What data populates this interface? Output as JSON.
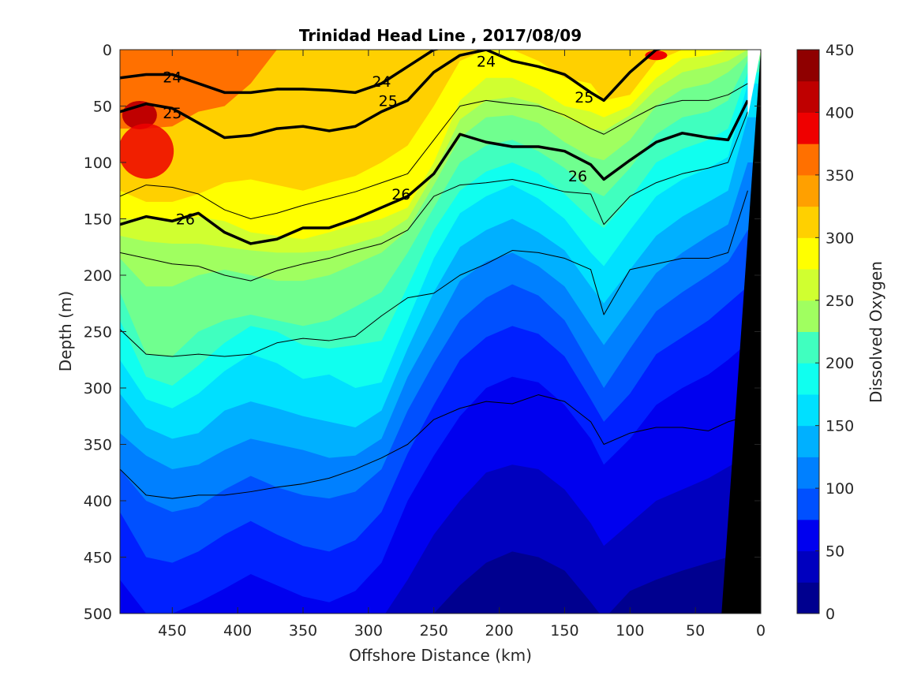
{
  "chart_data": {
    "type": "heatmap",
    "title": "Trinidad Head Line , 2017/08/09",
    "xlabel": "Offshore Distance (km)",
    "ylabel": "Depth (m)",
    "colorbar_label": "Dissolved Oxygen",
    "xlim": [
      490,
      0
    ],
    "ylim": [
      0,
      500
    ],
    "x_reversed": true,
    "y_reversed": true,
    "x_ticks": [
      450,
      400,
      350,
      300,
      250,
      200,
      150,
      100,
      50,
      0
    ],
    "y_ticks": [
      0,
      50,
      100,
      150,
      200,
      250,
      300,
      350,
      400,
      450,
      500
    ],
    "colorbar_ticks": [
      0,
      50,
      100,
      150,
      200,
      250,
      300,
      350,
      400,
      450
    ],
    "colorbar_range": [
      0,
      450
    ],
    "levels": [
      0,
      25,
      50,
      75,
      100,
      125,
      150,
      175,
      200,
      225,
      250,
      275,
      300,
      325,
      350,
      375,
      400,
      425,
      450
    ],
    "level_colors": [
      "#00008f",
      "#0000bf",
      "#0000ef",
      "#0020ff",
      "#0050ff",
      "#0080ff",
      "#00b0ff",
      "#00e0ff",
      "#10ffef",
      "#40ffbf",
      "#70ff8f",
      "#a0ff60",
      "#d0ff30",
      "#ffff00",
      "#ffd000",
      "#ffa000",
      "#ff7000",
      "#ff4000",
      "#ef0000",
      "#bf0000",
      "#8f0000"
    ],
    "oxygen_bands": [
      {
        "level": 375,
        "depths": [
          70,
          70,
          68,
          55,
          50,
          30,
          0,
          -5,
          -5,
          -5,
          -5,
          -5,
          -5,
          -5,
          -5,
          -5,
          -5,
          -5,
          -5,
          -5,
          -5,
          -5,
          -5,
          -5,
          -5,
          -5
        ]
      },
      {
        "level": 350,
        "depths": [
          125,
          135,
          135,
          128,
          118,
          115,
          120,
          125,
          118,
          112,
          100,
          85,
          50,
          10,
          0,
          0,
          10,
          25,
          30,
          45,
          40,
          10,
          0,
          0,
          -5,
          -5
        ]
      },
      {
        "level": 325,
        "depths": [
          150,
          150,
          152,
          148,
          152,
          162,
          165,
          168,
          162,
          155,
          150,
          140,
          100,
          45,
          25,
          25,
          35,
          50,
          55,
          60,
          50,
          25,
          8,
          5,
          0,
          -5
        ]
      },
      {
        "level": 300,
        "depths": [
          165,
          170,
          172,
          172,
          175,
          178,
          180,
          180,
          178,
          172,
          165,
          150,
          110,
          62,
          45,
          42,
          48,
          60,
          70,
          72,
          58,
          35,
          20,
          15,
          10,
          0
        ]
      },
      {
        "level": 275,
        "depths": [
          185,
          210,
          210,
          200,
          195,
          200,
          205,
          205,
          200,
          190,
          180,
          160,
          120,
          78,
          60,
          58,
          65,
          82,
          95,
          98,
          80,
          50,
          35,
          30,
          20,
          5
        ]
      },
      {
        "level": 250,
        "depths": [
          215,
          270,
          272,
          250,
          240,
          235,
          240,
          245,
          240,
          228,
          215,
          180,
          140,
          100,
          85,
          80,
          90,
          105,
          125,
          130,
          105,
          75,
          60,
          55,
          45,
          10
        ]
      },
      {
        "level": 225,
        "depths": [
          240,
          290,
          298,
          280,
          260,
          245,
          250,
          262,
          265,
          262,
          258,
          210,
          160,
          125,
          108,
          100,
          110,
          128,
          150,
          158,
          132,
          100,
          88,
          80,
          70,
          20
        ]
      },
      {
        "level": 200,
        "depths": [
          275,
          310,
          318,
          305,
          285,
          270,
          278,
          292,
          288,
          300,
          295,
          240,
          185,
          145,
          130,
          120,
          132,
          150,
          180,
          192,
          160,
          130,
          115,
          105,
          95,
          30
        ]
      },
      {
        "level": 175,
        "depths": [
          305,
          335,
          345,
          340,
          320,
          312,
          318,
          325,
          330,
          335,
          320,
          265,
          215,
          175,
          160,
          150,
          162,
          178,
          210,
          225,
          195,
          165,
          148,
          135,
          125,
          60
        ]
      },
      {
        "level": 150,
        "depths": [
          340,
          360,
          372,
          368,
          355,
          345,
          350,
          355,
          362,
          360,
          345,
          290,
          248,
          205,
          188,
          180,
          192,
          210,
          245,
          262,
          230,
          198,
          180,
          165,
          155,
          100
        ]
      },
      {
        "level": 125,
        "depths": [
          372,
          400,
          410,
          405,
          390,
          378,
          388,
          395,
          398,
          392,
          372,
          320,
          278,
          240,
          220,
          208,
          218,
          240,
          280,
          300,
          265,
          232,
          215,
          200,
          188,
          160
        ]
      },
      {
        "level": 100,
        "depths": [
          410,
          450,
          455,
          445,
          430,
          418,
          430,
          440,
          445,
          435,
          410,
          358,
          315,
          275,
          255,
          245,
          252,
          272,
          310,
          330,
          305,
          270,
          255,
          240,
          225,
          210
        ]
      },
      {
        "level": 75,
        "depths": [
          470,
          500,
          500,
          490,
          478,
          465,
          475,
          485,
          490,
          480,
          455,
          400,
          360,
          325,
          300,
          290,
          295,
          315,
          345,
          368,
          345,
          315,
          300,
          288,
          275,
          260
        ]
      },
      {
        "level": 50,
        "depths": [
          505,
          505,
          505,
          505,
          505,
          505,
          505,
          505,
          505,
          505,
          505,
          470,
          430,
          400,
          375,
          368,
          372,
          390,
          420,
          440,
          420,
          400,
          390,
          380,
          370,
          360
        ]
      },
      {
        "level": 25,
        "depths": [
          505,
          505,
          505,
          505,
          505,
          505,
          505,
          505,
          505,
          505,
          505,
          505,
          500,
          475,
          455,
          445,
          450,
          462,
          490,
          505,
          480,
          470,
          462,
          455,
          450,
          440
        ]
      }
    ],
    "density_contours": [
      {
        "label": "24",
        "bold": true,
        "depths": [
          25,
          22,
          22,
          30,
          38,
          38,
          35,
          35,
          36,
          38,
          30,
          15,
          0,
          -5,
          -5,
          -5,
          -5,
          -5,
          -5,
          -5,
          -5,
          -5,
          -5,
          -5,
          -5,
          -5
        ]
      },
      {
        "label": "25",
        "bold": true,
        "depths": [
          55,
          48,
          52,
          65,
          78,
          76,
          70,
          68,
          72,
          68,
          55,
          45,
          20,
          5,
          0,
          10,
          15,
          22,
          38,
          45,
          20,
          0,
          -5,
          -5,
          -5,
          -5
        ]
      },
      {
        "label": "26",
        "bold": true,
        "depths": [
          155,
          148,
          152,
          145,
          162,
          172,
          168,
          158,
          158,
          150,
          140,
          130,
          110,
          75,
          82,
          86,
          86,
          90,
          102,
          115,
          98,
          82,
          74,
          78,
          80,
          45
        ]
      },
      {
        "label": "",
        "bold": false,
        "depths": [
          130,
          120,
          122,
          128,
          142,
          150,
          145,
          138,
          132,
          126,
          118,
          110,
          80,
          50,
          45,
          48,
          50,
          58,
          70,
          75,
          62,
          50,
          45,
          45,
          40,
          30
        ]
      },
      {
        "label": "",
        "bold": false,
        "depths": [
          180,
          185,
          190,
          192,
          200,
          205,
          196,
          190,
          185,
          178,
          172,
          160,
          130,
          120,
          118,
          115,
          120,
          126,
          128,
          155,
          130,
          118,
          110,
          105,
          100,
          55
        ]
      },
      {
        "label": "",
        "bold": false,
        "depths": [
          248,
          270,
          272,
          270,
          272,
          270,
          260,
          256,
          258,
          254,
          236,
          220,
          216,
          200,
          190,
          178,
          180,
          185,
          195,
          235,
          195,
          190,
          185,
          185,
          180,
          125
        ]
      },
      {
        "label": "",
        "bold": false,
        "depths": [
          372,
          395,
          398,
          395,
          395,
          392,
          388,
          385,
          380,
          372,
          362,
          350,
          328,
          318,
          312,
          314,
          306,
          312,
          330,
          350,
          340,
          335,
          335,
          338,
          330,
          325
        ]
      }
    ],
    "x_nodes": [
      490,
      470,
      450,
      430,
      410,
      390,
      370,
      350,
      330,
      310,
      290,
      270,
      250,
      230,
      210,
      190,
      170,
      150,
      130,
      120,
      100,
      80,
      60,
      40,
      25,
      10
    ],
    "bathymetry_mask": {
      "x_top": 0,
      "depth_top": 0,
      "x_bottom": 30,
      "depth_bottom": 500
    }
  }
}
